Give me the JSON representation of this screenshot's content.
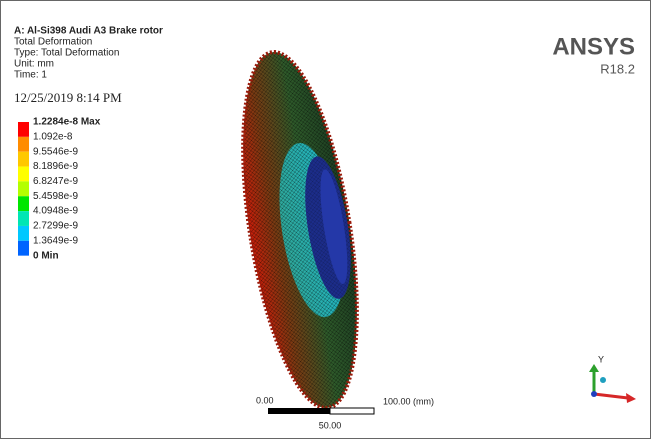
{
  "header": {
    "title": "A: Al-Si398 Audi A3 Brake rotor",
    "lines": [
      "Total Deformation",
      "Type: Total Deformation",
      "Unit: mm",
      "Time: 1"
    ],
    "timestamp": "12/25/2019 8:14 PM"
  },
  "legend": {
    "labels": [
      "1.2284e-8 Max",
      "1.092e-8",
      "9.5546e-9",
      "8.1896e-9",
      "6.8247e-9",
      "5.4598e-9",
      "4.0948e-9",
      "2.7299e-9",
      "1.3649e-9",
      "0 Min"
    ],
    "colors": [
      "#ff0000",
      "#ff8c00",
      "#ffc800",
      "#ffff00",
      "#b4ff00",
      "#00e600",
      "#00e6b4",
      "#00c8ff",
      "#0064ff",
      "#0000ff"
    ]
  },
  "logo": {
    "name": "ANSYS",
    "version": "R18.2"
  },
  "scale_bar": {
    "left": "0.00",
    "right": "100.00 (mm)",
    "middle": "50.00"
  },
  "triad": {
    "y": "Y"
  }
}
